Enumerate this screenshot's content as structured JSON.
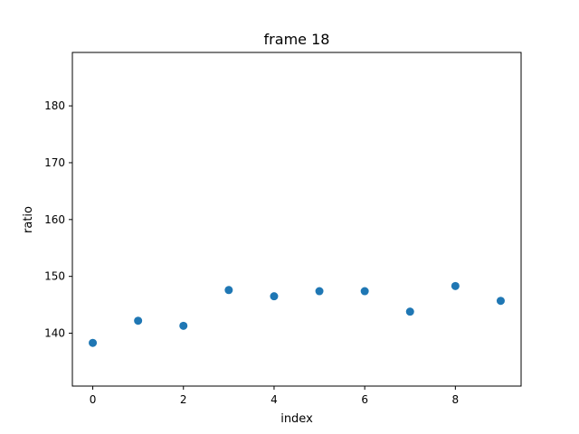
{
  "chart_data": {
    "type": "scatter",
    "title": "frame 18",
    "xlabel": "index",
    "ylabel": "ratio",
    "xlim": [
      -0.45,
      9.45
    ],
    "ylim": [
      130.7,
      189.4
    ],
    "xticks": [
      0,
      2,
      4,
      6,
      8
    ],
    "yticks": [
      140,
      150,
      160,
      170,
      180
    ],
    "grid": false,
    "series": [
      {
        "x": [
          0,
          1,
          2,
          3,
          4,
          5,
          6,
          7,
          8,
          9
        ],
        "y": [
          138.3,
          142.2,
          141.3,
          147.6,
          146.5,
          147.4,
          147.4,
          143.8,
          148.3,
          145.7
        ],
        "color": "#1f77b4"
      }
    ]
  }
}
